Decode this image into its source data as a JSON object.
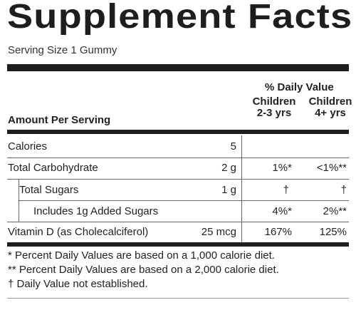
{
  "title": "Supplement Facts",
  "serving_size": "Serving Size 1 Gummy",
  "header": {
    "daily_value": "% Daily Value",
    "col1_line1": "Children",
    "col1_line2": "2-3 yrs",
    "col2_line1": "Children",
    "col2_line2": "4+ yrs",
    "amount_per_serving": "Amount Per Serving"
  },
  "rows": [
    {
      "name": "Calories",
      "amount": "5",
      "dv1": "",
      "dv2": ""
    },
    {
      "name": "Total Carbohydrate",
      "amount": "2 g",
      "dv1": "1%*",
      "dv2": "<1%**"
    },
    {
      "name": "Total Sugars",
      "amount": "1 g",
      "dv1": "†",
      "dv2": "†"
    },
    {
      "name": "Includes 1g Added Sugars",
      "amount": "",
      "dv1": "4%*",
      "dv2": "2%**"
    },
    {
      "name": "Vitamin D (as Cholecalciferol)",
      "amount": "25 mcg",
      "dv1": "167%",
      "dv2": "125%"
    }
  ],
  "footnotes": [
    "* Percent Daily Values are based on a 1,000 calorie diet.",
    "** Percent Daily Values are based on a 2,000 calorie diet.",
    "† Daily Value not established."
  ]
}
